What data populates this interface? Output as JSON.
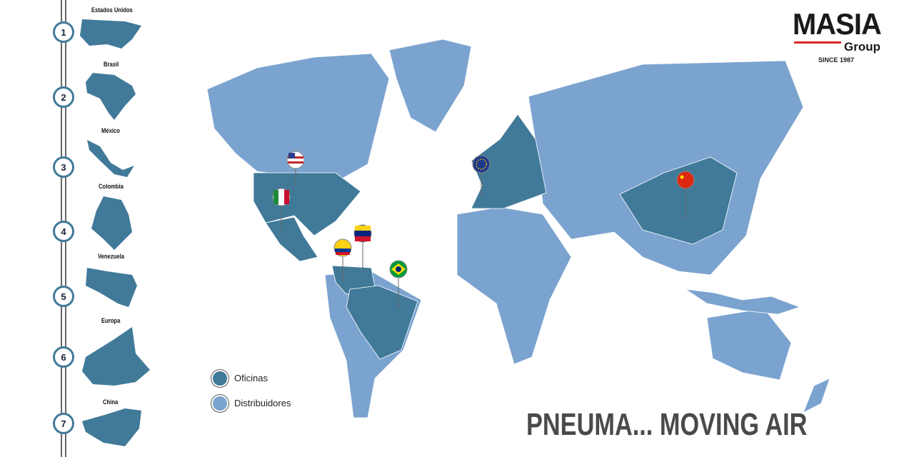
{
  "colors": {
    "offices": "#417a99",
    "distributors": "#7ba3cf"
  },
  "timeline": [
    {
      "number": "1",
      "country": "Estados Unidos"
    },
    {
      "number": "2",
      "country": "Brasil"
    },
    {
      "number": "3",
      "country": "México"
    },
    {
      "number": "4",
      "country": "Colombia"
    },
    {
      "number": "5",
      "country": "Venezuela"
    },
    {
      "number": "6",
      "country": "Europa"
    },
    {
      "number": "7",
      "country": "China"
    }
  ],
  "logo": {
    "name": "MASIA",
    "group": "Group",
    "since": "SINCE 1987"
  },
  "legend": {
    "offices": "Oficinas",
    "distributors": "Distribuidores"
  },
  "slogan": "PNEUMA... MOVING AIR",
  "pins": [
    "usa-flag",
    "mexico-flag",
    "colombia-flag",
    "venezuela-flag",
    "brazil-flag",
    "eu-flag",
    "china-flag"
  ]
}
